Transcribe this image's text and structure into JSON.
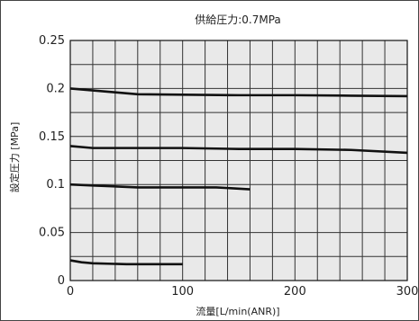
{
  "chart_data": {
    "type": "line",
    "title": "供給圧力:0.7MPa",
    "xlabel": "流量[L/min(ANR)]",
    "ylabel": "設定圧力 [MPa]",
    "xlim": [
      0,
      300
    ],
    "ylim": [
      0,
      0.25
    ],
    "x_ticks": [
      0,
      100,
      200,
      300
    ],
    "y_ticks": [
      0,
      0.05,
      0.1,
      0.15,
      0.2,
      0.25
    ],
    "x_tick_labels": [
      "0",
      "100",
      "200",
      "300"
    ],
    "y_tick_labels": [
      "0",
      "0.05",
      "0.1",
      "0.15",
      "0.2",
      "0.25"
    ],
    "x_minor_step": 20,
    "y_minor_step": 0.025,
    "grid": true,
    "plot_background": "#e9e9e9",
    "line_color": "#111111",
    "series": [
      {
        "x": [
          0,
          20,
          40,
          60,
          100,
          150,
          200,
          250,
          300
        ],
        "y": [
          0.2,
          0.198,
          0.196,
          0.194,
          0.1935,
          0.193,
          0.193,
          0.1925,
          0.192
        ]
      },
      {
        "x": [
          0,
          20,
          60,
          100,
          150,
          200,
          250,
          300
        ],
        "y": [
          0.14,
          0.138,
          0.138,
          0.138,
          0.137,
          0.137,
          0.136,
          0.133
        ]
      },
      {
        "x": [
          0,
          20,
          60,
          100,
          130,
          160
        ],
        "y": [
          0.1,
          0.099,
          0.097,
          0.097,
          0.097,
          0.095
        ]
      },
      {
        "x": [
          0,
          10,
          20,
          50,
          100
        ],
        "y": [
          0.021,
          0.019,
          0.018,
          0.017,
          0.017
        ]
      }
    ]
  }
}
